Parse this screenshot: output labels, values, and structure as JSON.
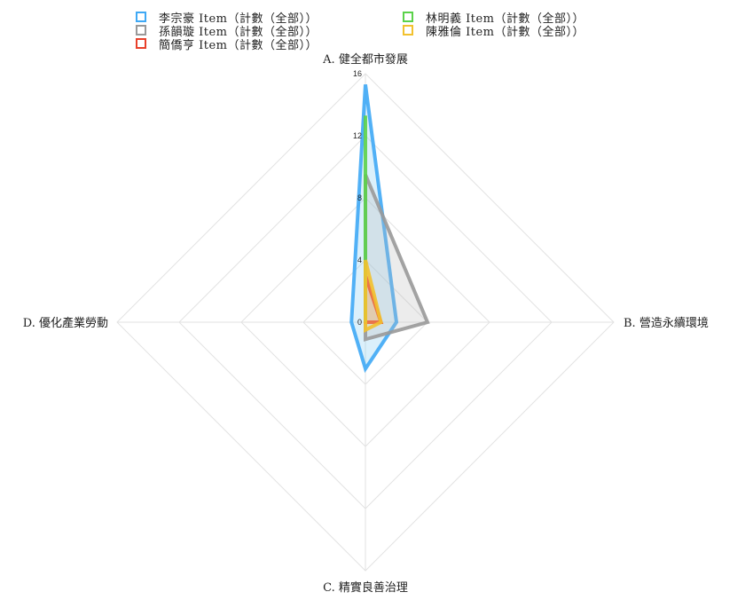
{
  "chart_data": {
    "type": "radar",
    "axes": [
      "A. 健全都市發展",
      "B. 營造永續環境",
      "C. 精實良善治理",
      "D. 優化產業勞動"
    ],
    "ticks": [
      "0",
      "4",
      "8",
      "12",
      "16"
    ],
    "range": [
      0,
      16
    ],
    "legend_position": "top",
    "series": [
      {
        "name": "李宗豪 Item（計數（全部））",
        "values": [
          15.3,
          2.0,
          3.0,
          0.9
        ],
        "color": "#3fa9f5",
        "fill": "#7cc8f0"
      },
      {
        "name": "孫韻璇 Item（計數（全部））",
        "values": [
          9.5,
          4.0,
          1.1,
          0.0
        ],
        "color": "#999999",
        "fill": "#bcbcbc"
      },
      {
        "name": "簡僑亨 Item（計數（全部））",
        "values": [
          3.0,
          1.0,
          0.0,
          0.0
        ],
        "color": "#e8402a",
        "fill": "#f08070"
      },
      {
        "name": "林明義 Item（計數（全部））",
        "values": [
          13.3,
          0.0,
          0.0,
          0.0
        ],
        "color": "#5bd24a",
        "fill": "#8fe07a"
      },
      {
        "name": "陳雅倫 Item（計數（全部））",
        "values": [
          4.0,
          1.0,
          0.5,
          0.0
        ],
        "color": "#f2c12e",
        "fill": "#f5d872"
      }
    ]
  }
}
